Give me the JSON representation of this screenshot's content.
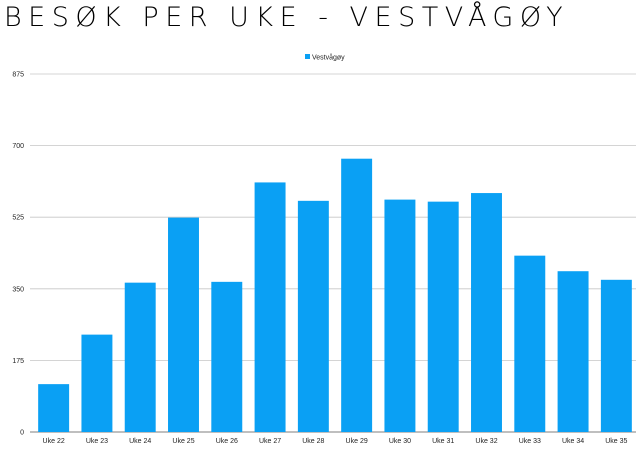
{
  "chart_data": {
    "type": "bar",
    "title": "BESØK PER UKE - VESTVÅGØY",
    "xlabel": "",
    "ylabel": "",
    "categories": [
      "Uke 22",
      "Uke 23",
      "Uke 24",
      "Uke 25",
      "Uke 26",
      "Uke 27",
      "Uke 28",
      "Uke 29",
      "Uke 30",
      "Uke 31",
      "Uke 32",
      "Uke 33",
      "Uke 34",
      "Uke 35"
    ],
    "series": [
      {
        "name": "Vestvågøy",
        "color": "#0aa0f4",
        "values": [
          117,
          238,
          365,
          524,
          367,
          610,
          565,
          668,
          568,
          563,
          584,
          431,
          393,
          372
        ]
      }
    ],
    "ylim": [
      0,
      875
    ],
    "yticks": [
      "0",
      "175",
      "350",
      "525",
      "700",
      "875"
    ],
    "grid": true,
    "legend_position": "top-center"
  }
}
